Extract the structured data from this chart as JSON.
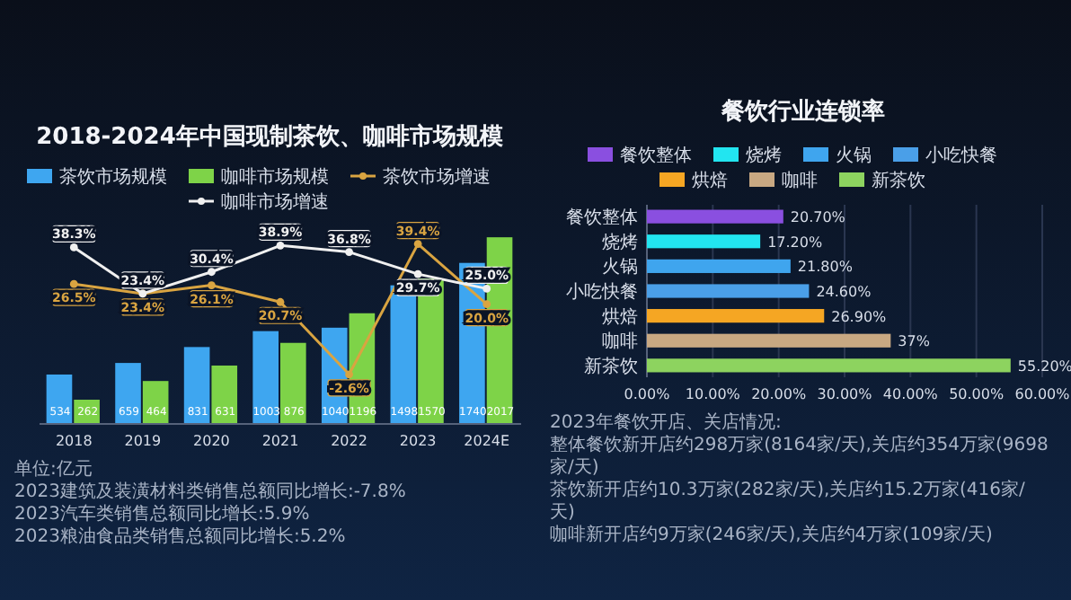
{
  "chart_data": [
    {
      "type": "bar",
      "title": "2018-2024年中国现制茶饮、咖啡市场规模",
      "categories": [
        "2018",
        "2019",
        "2020",
        "2021",
        "2022",
        "2023",
        "2024E"
      ],
      "series": [
        {
          "name": "茶饮市场规模",
          "color": "#3ea6f0",
          "values": [
            534,
            659,
            831,
            1003,
            1040,
            1498,
            1740
          ],
          "value_labels": [
            "534",
            "659",
            "831",
            "1003",
            "1040",
            "1498",
            "1740"
          ]
        },
        {
          "name": "咖啡市场规模",
          "color": "#7ed348",
          "values": [
            262,
            464,
            631,
            876,
            1196,
            1570,
            2017
          ],
          "value_labels": [
            "262",
            "464",
            "631",
            "876",
            "1196",
            "1570",
            "2017"
          ]
        },
        {
          "name": "茶饮市场增速",
          "type": "line",
          "axis": "y2",
          "color": "#d9a441",
          "values": [
            26.5,
            23.4,
            26.1,
            20.7,
            -2.6,
            39.4,
            20.0
          ],
          "value_labels": [
            "26.5%",
            "23.4%",
            "26.1%",
            "20.7%",
            "-2.6%",
            "39.4%",
            "20.0%"
          ]
        },
        {
          "name": "咖啡市场增速",
          "type": "line",
          "axis": "y2",
          "color": "#f0f0f0",
          "values": [
            38.3,
            23.4,
            30.4,
            38.9,
            36.8,
            29.7,
            25.0
          ],
          "value_labels": [
            "38.3%",
            "23.4%",
            "30.4%",
            "38.9%",
            "36.8%",
            "29.7%",
            "25.0%"
          ]
        }
      ],
      "tick_labels": "x",
      "legend": "top",
      "marker": "circle",
      "annotations": [
        "单位:亿元",
        "2023建筑及装潢材料类销售总额同比增长:-7.8%",
        "2023汽车类销售总额同比增长:5.9%",
        "2023粮油食品类销售总额同比增长:5.2%"
      ]
    },
    {
      "type": "bar",
      "orientation": "horizontal",
      "title": "餐饮行业连锁率",
      "categories": [
        "餐饮整体",
        "烧烤",
        "火锅",
        "小吃快餐",
        "烘焙",
        "咖啡",
        "新茶饮"
      ],
      "stacked": true,
      "series": [
        {
          "name": "餐饮整体",
          "color": "#8a4fe0",
          "values": [
            20.7,
            null,
            null,
            null,
            null,
            null,
            null
          ],
          "value_labels": [
            "20.70%",
            null,
            null,
            null,
            null,
            null,
            null
          ]
        },
        {
          "name": "烧烤",
          "color": "#22e5f0",
          "values": [
            null,
            17.2,
            null,
            null,
            null,
            null,
            null
          ],
          "value_labels": [
            null,
            "17.20%",
            null,
            null,
            null,
            null,
            null
          ]
        },
        {
          "name": "火锅",
          "color": "#3fa5ee",
          "values": [
            null,
            null,
            21.8,
            null,
            null,
            null,
            null
          ],
          "value_labels": [
            null,
            null,
            "21.80%",
            null,
            null,
            null,
            null
          ]
        },
        {
          "name": "小吃快餐",
          "color": "#4a9fe8",
          "values": [
            null,
            null,
            null,
            24.6,
            null,
            null,
            null
          ],
          "value_labels": [
            null,
            null,
            null,
            "24.60%",
            null,
            null,
            null
          ]
        },
        {
          "name": "烘焙",
          "color": "#f5a623",
          "values": [
            null,
            null,
            null,
            null,
            26.9,
            null,
            null
          ],
          "value_labels": [
            null,
            null,
            null,
            null,
            "26.90%",
            null,
            null
          ]
        },
        {
          "name": "咖啡",
          "color": "#c8a882",
          "values": [
            null,
            null,
            null,
            null,
            null,
            37,
            null
          ],
          "value_labels": [
            null,
            null,
            null,
            null,
            null,
            "37%",
            null
          ]
        },
        {
          "name": "新茶饮",
          "color": "#8dd35f",
          "values": [
            null,
            null,
            null,
            null,
            null,
            null,
            55.2
          ],
          "value_labels": [
            null,
            null,
            null,
            null,
            null,
            null,
            "55.20%"
          ]
        }
      ],
      "xlim": [
        0,
        60
      ],
      "xticks": [
        {
          "value": 0,
          "label": "0.00%"
        },
        {
          "value": 10,
          "label": "10.00%"
        },
        {
          "value": 20,
          "label": "20.00%"
        },
        {
          "value": 30,
          "label": "30.00%"
        },
        {
          "value": 40,
          "label": "40.00%"
        },
        {
          "value": 50,
          "label": "50.00%"
        },
        {
          "value": 60,
          "label": "60.00%"
        }
      ],
      "grid": "x",
      "legend": "top",
      "annotations": [
        "2023年餐饮开店、关店情况:",
        "整体餐饮新开店约298万家(8164家/天),关店约354万家(9698家/天)",
        "茶饮新开店约10.3万家(282家/天),关店约15.2万家(416家/天)",
        "咖啡新开店约9万家(246家/天),关店约4万家(109家/天)"
      ]
    }
  ]
}
